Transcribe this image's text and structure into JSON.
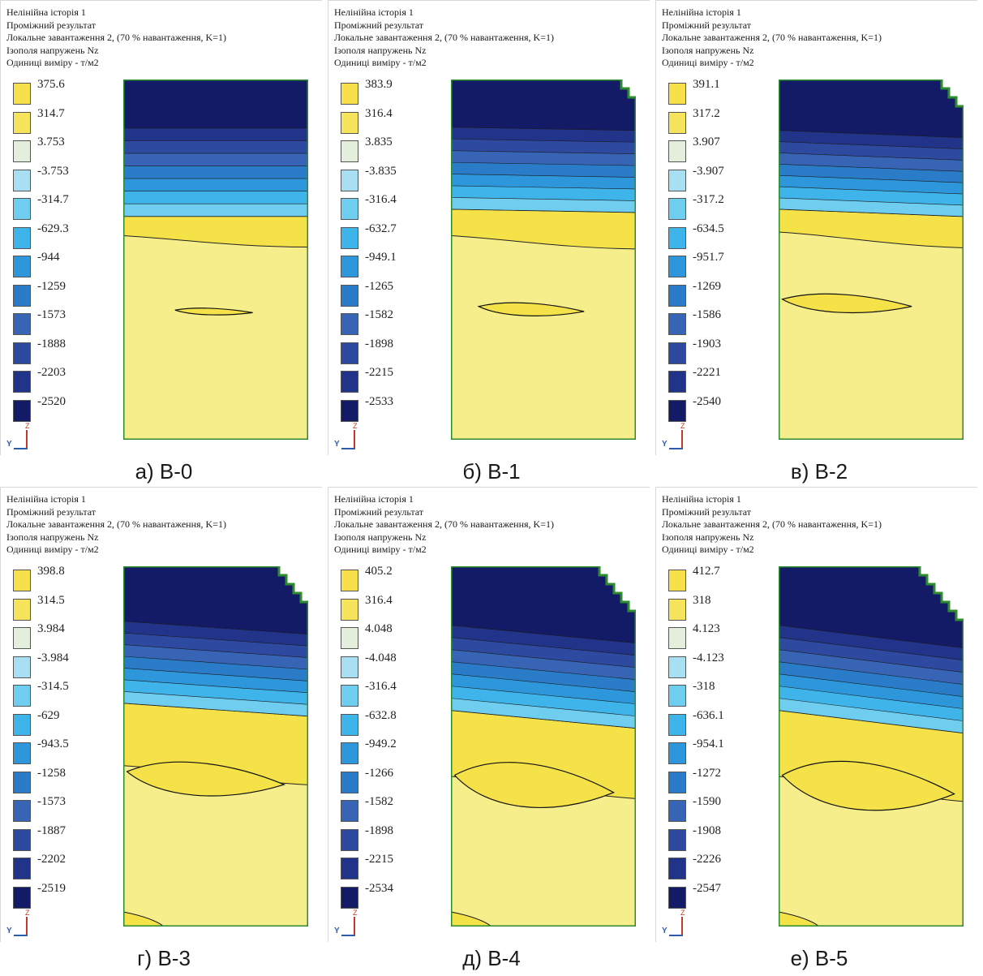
{
  "header_lines": [
    "Нелінійна історія 1",
    "Проміжний результат",
    "Локальне завантаження 2, (70 % навантаження, K=1)",
    "Ізополя напружень Nz",
    "Одиниці виміру - т/м2"
  ],
  "axis": {
    "z_label": "Z",
    "y_label": "Y"
  },
  "colors": {
    "legend": [
      "#f7e04a",
      "#f5e45c",
      "#e4eedc",
      "#a8dff2",
      "#6fcdf0",
      "#3fb4ea",
      "#2e97db",
      "#2a7cc8",
      "#3864b5",
      "#2e4aa0",
      "#22338a",
      "#141b66"
    ],
    "field_yellow": "#f6ee8a",
    "field_yellow_dark": "#f4e248",
    "border_green": "#2e8b2e"
  },
  "panels": [
    {
      "caption": "а) В-0",
      "legend_values": [
        "375.6",
        "314.7",
        "3.753",
        "-3.753",
        "-314.7",
        "-629.3",
        "-944",
        "-1259",
        "-1573",
        "-1888",
        "-2203",
        "-2520"
      ]
    },
    {
      "caption": "б) В-1",
      "legend_values": [
        "383.9",
        "316.4",
        "3.835",
        "-3.835",
        "-316.4",
        "-632.7",
        "-949.1",
        "-1265",
        "-1582",
        "-1898",
        "-2215",
        "-2533"
      ]
    },
    {
      "caption": "в) В-2",
      "legend_values": [
        "391.1",
        "317.2",
        "3.907",
        "-3.907",
        "-317.2",
        "-634.5",
        "-951.7",
        "-1269",
        "-1586",
        "-1903",
        "-2221",
        "-2540"
      ]
    },
    {
      "caption": "г) В-3",
      "legend_values": [
        "398.8",
        "314.5",
        "3.984",
        "-3.984",
        "-314.5",
        "-629",
        "-943.5",
        "-1258",
        "-1573",
        "-1887",
        "-2202",
        "-2519"
      ]
    },
    {
      "caption": "д) В-4",
      "legend_values": [
        "405.2",
        "316.4",
        "4.048",
        "-4.048",
        "-316.4",
        "-632.8",
        "-949.2",
        "-1266",
        "-1582",
        "-1898",
        "-2215",
        "-2534"
      ]
    },
    {
      "caption": "е) В-5",
      "legend_values": [
        "412.7",
        "318",
        "4.123",
        "-4.123",
        "-318",
        "-636.1",
        "-954.1",
        "-1272",
        "-1590",
        "-1908",
        "-2226",
        "-2547"
      ]
    }
  ]
}
